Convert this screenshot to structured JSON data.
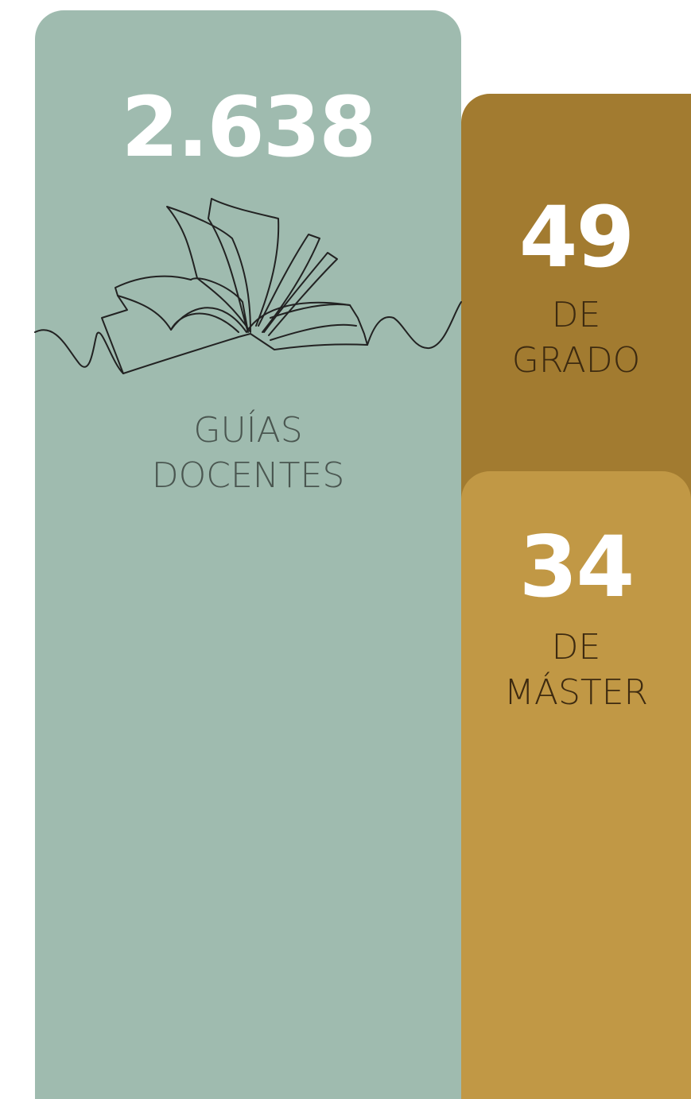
{
  "cards": [
    {
      "value": "2.638",
      "label": [
        "GUÍAS",
        "DOCENTES"
      ]
    },
    {
      "value": "49",
      "label": [
        "DE",
        "GRADO"
      ]
    },
    {
      "value": "34",
      "label": [
        "DE",
        "MÁSTER"
      ]
    }
  ]
}
